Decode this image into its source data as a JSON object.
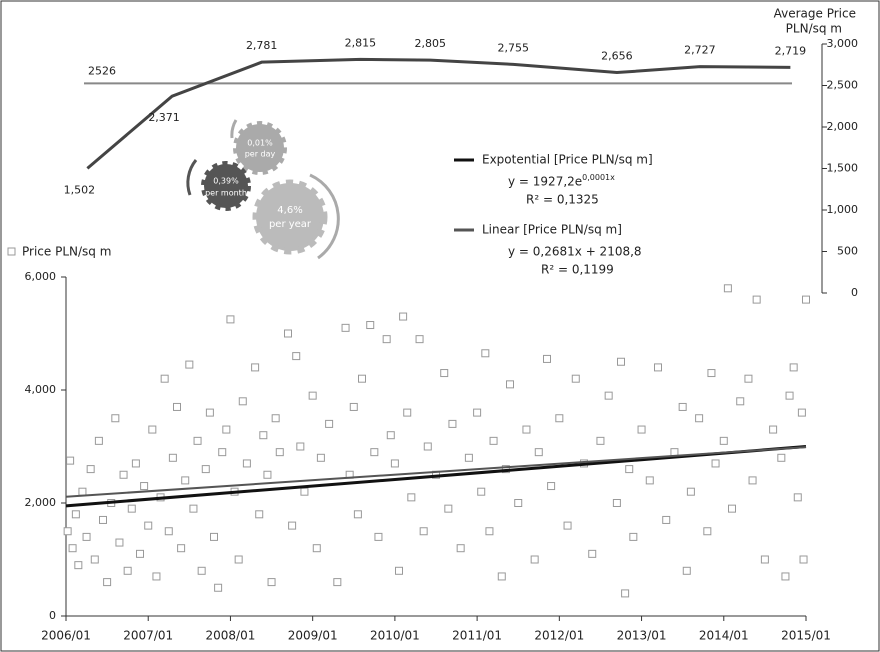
{
  "chart_data": [
    {
      "type": "line",
      "y2label": [
        "Average Price",
        "PLN/sq m"
      ],
      "xlim": [
        2006,
        2015
      ],
      "x": [
        2006.26,
        2007.29,
        2008.38,
        2009.58,
        2010.43,
        2011.44,
        2012.7,
        2013.71,
        2014.81
      ],
      "series": [
        {
          "values": [
            1502,
            2371,
            2781,
            2815,
            2805,
            2755,
            2656,
            2727,
            2719
          ],
          "value_labels": [
            "1,502",
            "2,371",
            "2,781",
            "2,815",
            "2,805",
            "2,755",
            "2,656",
            "2,727",
            "2,719"
          ],
          "color": "#444",
          "axis": "y2"
        }
      ],
      "reference_line": 2526,
      "y2lim": [
        0,
        3000
      ],
      "y2ticks": [
        0,
        500,
        {
          "value": 1000,
          "label": "1,000"
        },
        {
          "value": 1500,
          "label": "1,500"
        },
        {
          "value": 2000,
          "label": "2,000"
        },
        {
          "value": 2500,
          "label": "2,500"
        },
        {
          "value": 3000,
          "label": "3,000"
        }
      ],
      "gears": [
        {
          "rate": "0,01%",
          "period": "per day"
        },
        {
          "rate": "0,39%",
          "period": "per month"
        },
        {
          "rate": "4,6%",
          "period": "per year"
        }
      ]
    },
    {
      "type": "scatter",
      "xlim": [
        2006,
        2015
      ],
      "xticks": [
        {
          "value": 2006,
          "label": "2006/01"
        },
        {
          "value": 2007,
          "label": "2007/01"
        },
        {
          "value": 2008,
          "label": "2008/01"
        },
        {
          "value": 2009,
          "label": "2009/01"
        },
        {
          "value": 2010,
          "label": "2010/01"
        },
        {
          "value": 2011,
          "label": "2011/01"
        },
        {
          "value": 2012,
          "label": "2012/01"
        },
        {
          "value": 2013,
          "label": "2013/01"
        },
        {
          "value": 2014,
          "label": "2014/01"
        },
        {
          "value": 2015,
          "label": "2015/01"
        }
      ],
      "ylim": [
        0,
        6000
      ],
      "yticks": [
        0,
        {
          "value": 2000,
          "label": "2,000"
        },
        {
          "value": 4000,
          "label": "4,000"
        },
        {
          "value": 6000,
          "label": "6,000"
        }
      ],
      "legend": "top-left",
      "series": [
        {
          "name": "Price PLN/sq m",
          "color": "#999",
          "x": [
            2006.02,
            2006.05,
            2006.08,
            2006.12,
            2006.15,
            2006.2,
            2006.25,
            2006.3,
            2006.35,
            2006.4,
            2006.45,
            2006.5,
            2006.55,
            2006.6,
            2006.65,
            2006.7,
            2006.75,
            2006.8,
            2006.85,
            2006.9,
            2006.95,
            2007.0,
            2007.05,
            2007.1,
            2007.15,
            2007.2,
            2007.25,
            2007.3,
            2007.35,
            2007.4,
            2007.45,
            2007.5,
            2007.55,
            2007.6,
            2007.65,
            2007.7,
            2007.75,
            2007.8,
            2007.85,
            2007.9,
            2007.95,
            2008.0,
            2008.05,
            2008.1,
            2008.15,
            2008.2,
            2008.3,
            2008.35,
            2008.4,
            2008.45,
            2008.5,
            2008.55,
            2008.6,
            2008.7,
            2008.75,
            2008.8,
            2008.85,
            2008.9,
            2009.0,
            2009.05,
            2009.1,
            2009.2,
            2009.3,
            2009.4,
            2009.45,
            2009.5,
            2009.55,
            2009.6,
            2009.7,
            2009.75,
            2009.8,
            2009.9,
            2009.95,
            2010.0,
            2010.05,
            2010.1,
            2010.15,
            2010.2,
            2010.3,
            2010.35,
            2010.4,
            2010.5,
            2010.6,
            2010.65,
            2010.7,
            2010.8,
            2010.9,
            2011.0,
            2011.05,
            2011.1,
            2011.15,
            2011.2,
            2011.3,
            2011.35,
            2011.4,
            2011.5,
            2011.6,
            2011.7,
            2011.75,
            2011.85,
            2011.9,
            2012.0,
            2012.1,
            2012.2,
            2012.3,
            2012.4,
            2012.5,
            2012.6,
            2012.7,
            2012.75,
            2012.8,
            2012.85,
            2012.9,
            2013.0,
            2013.1,
            2013.2,
            2013.3,
            2013.4,
            2013.5,
            2013.55,
            2013.6,
            2013.7,
            2013.8,
            2013.85,
            2013.9,
            2014.0,
            2014.05,
            2014.1,
            2014.2,
            2014.3,
            2014.35,
            2014.4,
            2014.5,
            2014.6,
            2014.7,
            2014.75,
            2014.8,
            2014.85,
            2014.9,
            2014.95,
            2015.0,
            2014.97
          ],
          "values": [
            1500,
            2750,
            1200,
            1800,
            900,
            2200,
            1400,
            2600,
            1000,
            3100,
            1700,
            600,
            2000,
            3500,
            1300,
            2500,
            800,
            1900,
            2700,
            1100,
            2300,
            1600,
            3300,
            700,
            2100,
            4200,
            1500,
            2800,
            3700,
            1200,
            2400,
            4450,
            1900,
            3100,
            800,
            2600,
            3600,
            1400,
            500,
            2900,
            3300,
            5250,
            2200,
            1000,
            3800,
            2700,
            4400,
            1800,
            3200,
            2500,
            600,
            3500,
            2900,
            5000,
            1600,
            4600,
            3000,
            2200,
            3900,
            1200,
            2800,
            3400,
            600,
            5100,
            2500,
            3700,
            1800,
            4200,
            5150,
            2900,
            1400,
            4900,
            3200,
            2700,
            800,
            5300,
            3600,
            2100,
            4900,
            1500,
            3000,
            2500,
            4300,
            1900,
            3400,
            1200,
            2800,
            3600,
            2200,
            4650,
            1500,
            3100,
            700,
            2600,
            4100,
            2000,
            3300,
            1000,
            2900,
            4550,
            2300,
            3500,
            1600,
            4200,
            2700,
            1100,
            3100,
            3900,
            2000,
            4500,
            400,
            2600,
            1400,
            3300,
            2400,
            4400,
            1700,
            2900,
            3700,
            800,
            2200,
            3500,
            1500,
            4300,
            2700,
            3100,
            5800,
            1900,
            3800,
            4200,
            2400,
            5600,
            1000,
            3300,
            2800,
            700,
            3900,
            4400,
            2100,
            3600,
            5600,
            1000
          ]
        }
      ],
      "trendlines": [
        {
          "name": "Expotential [Price PLN/sq m]",
          "equation": "y = 1927,2e",
          "exponent": "0,0001x",
          "r2": "R² = 0,1325",
          "color": "#111",
          "x": [
            2006,
            2015
          ],
          "values": [
            1950,
            3000
          ]
        },
        {
          "name": "Linear [Price PLN/sq m]",
          "equation": "y = 0,2681x + 2108,8",
          "r2": "R² = 0,1199",
          "color": "#555",
          "x": [
            2006,
            2015
          ],
          "values": [
            2110,
            2990
          ]
        }
      ]
    }
  ]
}
